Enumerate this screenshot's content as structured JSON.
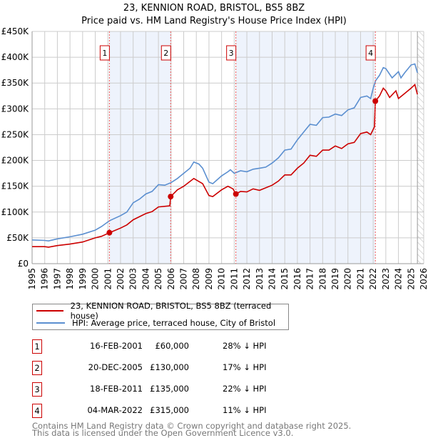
{
  "chart_data": {
    "type": "line",
    "title": "23, KENNION ROAD, BRISTOL, BS5 8BZ",
    "subtitle": "Price paid vs. HM Land Registry's House Price Index (HPI)",
    "xlim": [
      1995,
      2026
    ],
    "ylim": [
      0,
      450000
    ],
    "x_ticks": [
      "1995",
      "1996",
      "1997",
      "1998",
      "1999",
      "2000",
      "2001",
      "2002",
      "2003",
      "2004",
      "2005",
      "2006",
      "2007",
      "2008",
      "2009",
      "2010",
      "2011",
      "2012",
      "2013",
      "2014",
      "2015",
      "2016",
      "2017",
      "2018",
      "2019",
      "2020",
      "2021",
      "2022",
      "2023",
      "2024",
      "2025",
      "2026"
    ],
    "y_ticks": [
      {
        "v": 0,
        "label": "£0"
      },
      {
        "v": 50000,
        "label": "£50K"
      },
      {
        "v": 100000,
        "label": "£100K"
      },
      {
        "v": 150000,
        "label": "£150K"
      },
      {
        "v": 200000,
        "label": "£200K"
      },
      {
        "v": 250000,
        "label": "£250K"
      },
      {
        "v": 300000,
        "label": "£300K"
      },
      {
        "v": 350000,
        "label": "£350K"
      },
      {
        "v": 400000,
        "label": "£400K"
      },
      {
        "v": 450000,
        "label": "£450K"
      }
    ],
    "grid": true,
    "forecast_hatch_from": 2025.5,
    "series": [
      {
        "name": "23, KENNION ROAD, BRISTOL, BS5 8BZ (terraced house)",
        "color": "#cc0000",
        "points": [
          [
            1995,
            33
          ],
          [
            1996,
            33
          ],
          [
            1996.3,
            32
          ],
          [
            1997,
            35
          ],
          [
            1998,
            38
          ],
          [
            1999,
            42
          ],
          [
            2000,
            50
          ],
          [
            2000.5,
            53
          ],
          [
            2001.12,
            60
          ],
          [
            2002,
            69
          ],
          [
            2002.5,
            75
          ],
          [
            2003,
            85
          ],
          [
            2004,
            97
          ],
          [
            2004.5,
            101
          ],
          [
            2005,
            110
          ],
          [
            2005.9,
            112
          ],
          [
            2005.97,
            130
          ],
          [
            2006.5,
            143
          ],
          [
            2007,
            150
          ],
          [
            2007.8,
            165
          ],
          [
            2008.5,
            155
          ],
          [
            2009,
            132
          ],
          [
            2009.3,
            130
          ],
          [
            2010,
            143
          ],
          [
            2010.5,
            150
          ],
          [
            2010.9,
            145
          ],
          [
            2011.13,
            135
          ],
          [
            2011.5,
            140
          ],
          [
            2012,
            139
          ],
          [
            2012.5,
            145
          ],
          [
            2013,
            142
          ],
          [
            2014,
            152
          ],
          [
            2014.5,
            160
          ],
          [
            2015,
            172
          ],
          [
            2015.5,
            172
          ],
          [
            2016,
            185
          ],
          [
            2016.5,
            195
          ],
          [
            2017,
            210
          ],
          [
            2017.5,
            208
          ],
          [
            2018,
            220
          ],
          [
            2018.5,
            220
          ],
          [
            2019,
            228
          ],
          [
            2019.5,
            223
          ],
          [
            2020,
            232
          ],
          [
            2020.5,
            235
          ],
          [
            2021,
            252
          ],
          [
            2021.5,
            255
          ],
          [
            2021.8,
            250
          ],
          [
            2022.1,
            265
          ],
          [
            2022.17,
            315
          ],
          [
            2022.5,
            325
          ],
          [
            2022.8,
            340
          ],
          [
            2023,
            335
          ],
          [
            2023.3,
            322
          ],
          [
            2023.8,
            335
          ],
          [
            2024,
            320
          ],
          [
            2024.5,
            330
          ],
          [
            2025,
            340
          ],
          [
            2025.3,
            347
          ],
          [
            2025.5,
            328
          ]
        ]
      },
      {
        "name": "HPI: Average price, terraced house, City of Bristol",
        "color": "#5b8fd0",
        "points": [
          [
            1995,
            46
          ],
          [
            1996,
            45
          ],
          [
            1996.3,
            44
          ],
          [
            1997,
            48
          ],
          [
            1998,
            52
          ],
          [
            1999,
            57
          ],
          [
            2000,
            65
          ],
          [
            2000.5,
            72
          ],
          [
            2001,
            81
          ],
          [
            2001.2,
            84
          ],
          [
            2002,
            93
          ],
          [
            2002.5,
            100
          ],
          [
            2003,
            118
          ],
          [
            2003.5,
            125
          ],
          [
            2004,
            135
          ],
          [
            2004.5,
            140
          ],
          [
            2005,
            153
          ],
          [
            2005.5,
            152
          ],
          [
            2006,
            157
          ],
          [
            2006.5,
            165
          ],
          [
            2007,
            175
          ],
          [
            2007.5,
            185
          ],
          [
            2007.8,
            197
          ],
          [
            2008.2,
            193
          ],
          [
            2008.5,
            185
          ],
          [
            2009,
            158
          ],
          [
            2009.3,
            155
          ],
          [
            2010,
            170
          ],
          [
            2010.5,
            178
          ],
          [
            2010.7,
            182
          ],
          [
            2011,
            175
          ],
          [
            2011.5,
            180
          ],
          [
            2012,
            178
          ],
          [
            2012.5,
            183
          ],
          [
            2013,
            185
          ],
          [
            2013.5,
            187
          ],
          [
            2014,
            195
          ],
          [
            2014.5,
            205
          ],
          [
            2015,
            220
          ],
          [
            2015.5,
            222
          ],
          [
            2016,
            240
          ],
          [
            2016.5,
            255
          ],
          [
            2017,
            270
          ],
          [
            2017.5,
            268
          ],
          [
            2018,
            283
          ],
          [
            2018.5,
            284
          ],
          [
            2019,
            290
          ],
          [
            2019.5,
            287
          ],
          [
            2020,
            298
          ],
          [
            2020.5,
            302
          ],
          [
            2021,
            322
          ],
          [
            2021.5,
            325
          ],
          [
            2021.8,
            320
          ],
          [
            2022,
            340
          ],
          [
            2022.2,
            355
          ],
          [
            2022.5,
            365
          ],
          [
            2022.8,
            380
          ],
          [
            2023,
            378
          ],
          [
            2023.5,
            360
          ],
          [
            2024,
            372
          ],
          [
            2024.2,
            360
          ],
          [
            2024.5,
            370
          ],
          [
            2025,
            385
          ],
          [
            2025.3,
            387
          ],
          [
            2025.5,
            370
          ]
        ]
      }
    ],
    "sales": [
      {
        "id": "1",
        "x": 2001.12,
        "value": 60000,
        "date": "16-FEB-2001",
        "price": "£60,000",
        "hpi": "28% ↓ HPI"
      },
      {
        "id": "2",
        "x": 2005.97,
        "value": 130000,
        "date": "20-DEC-2005",
        "price": "£130,000",
        "hpi": "17% ↓ HPI"
      },
      {
        "id": "3",
        "x": 2011.13,
        "value": 135000,
        "date": "18-FEB-2011",
        "price": "£135,000",
        "hpi": "22% ↓ HPI"
      },
      {
        "id": "4",
        "x": 2022.17,
        "value": 315000,
        "date": "04-MAR-2022",
        "price": "£315,000",
        "hpi": "11% ↓ HPI"
      }
    ],
    "legend_placement": "bottom"
  },
  "legend": {
    "property": "23, KENNION ROAD, BRISTOL, BS5 8BZ (terraced house)",
    "hpi": "HPI: Average price, terraced house, City of Bristol"
  },
  "footer": {
    "line1": "Contains HM Land Registry data © Crown copyright and database right 2025.",
    "line2": "This data is licensed under the Open Government Licence v3.0."
  }
}
